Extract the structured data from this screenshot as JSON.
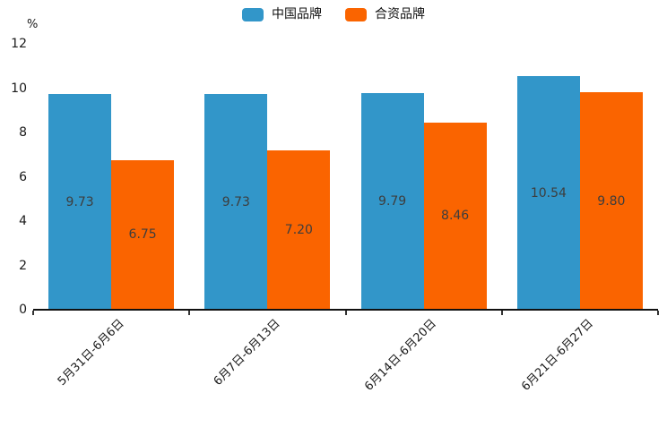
{
  "chart_data": {
    "type": "bar",
    "title": "",
    "categories": [
      "5月31日-6月6日",
      "6月7日-6月13日",
      "6月14日-6月20日",
      "6月21日-6月27日"
    ],
    "series": [
      {
        "name": "中国品牌",
        "color": "#3296C9",
        "values": [
          9.73,
          9.73,
          9.79,
          10.54
        ]
      },
      {
        "name": "合资品牌",
        "color": "#FA6400",
        "values": [
          6.75,
          7.2,
          8.46,
          9.8
        ]
      }
    ],
    "value_labels": [
      [
        "9.73",
        "9.73",
        "9.79",
        "10.54"
      ],
      [
        "6.75",
        "7.20",
        "8.46",
        "9.80"
      ]
    ],
    "ylabel": "%",
    "ylim": [
      0,
      12
    ],
    "yticks": [
      0,
      2,
      4,
      6,
      8,
      10,
      12
    ],
    "legend_position": "top",
    "grid": false,
    "x_label_rotation": 45,
    "axis_color": "#111111",
    "value_label_color": "#3d3d3d"
  }
}
